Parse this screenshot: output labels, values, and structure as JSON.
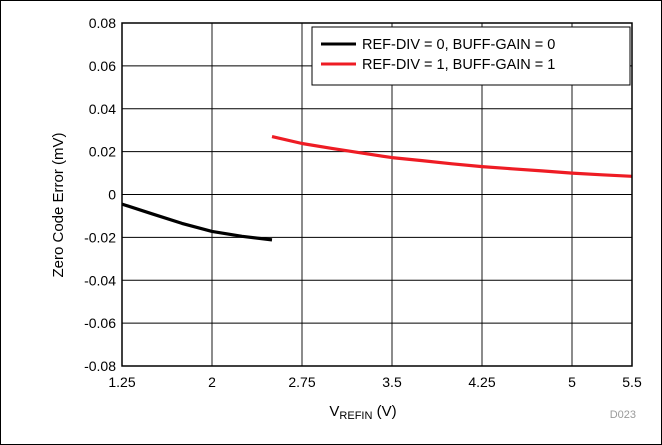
{
  "chart_data": {
    "type": "line",
    "title": "",
    "xlabel": "V",
    "xlabel_sub": "REFIN",
    "xlabel_unit": " (V)",
    "ylabel": "Zero Code Error (mV)",
    "xlim": [
      1.25,
      5.5
    ],
    "ylim": [
      -0.08,
      0.08
    ],
    "x_ticks": [
      1.25,
      2,
      2.75,
      3.5,
      4.25,
      5,
      5.5
    ],
    "x_tick_labels": [
      "1.25",
      "2",
      "2.75",
      "3.5",
      "4.25",
      "5",
      "5.5"
    ],
    "y_ticks": [
      0.08,
      0.06,
      0.04,
      0.02,
      0,
      -0.02,
      -0.04,
      -0.06,
      -0.08
    ],
    "y_tick_labels": [
      "0.08",
      "0.06",
      "0.04",
      "0.02",
      "0",
      "-0.02",
      "-0.04",
      "-0.06",
      "-0.08"
    ],
    "grid": true,
    "legend_position": "top-right",
    "figure_code": "D023",
    "series": [
      {
        "name": "REF-DIV = 0, BUFF-GAIN = 0",
        "color": "#000000",
        "x": [
          1.25,
          1.5,
          1.75,
          2.0,
          2.25,
          2.5
        ],
        "y": [
          -0.0045,
          -0.009,
          -0.0135,
          -0.0172,
          -0.0195,
          -0.0212
        ]
      },
      {
        "name": "REF-DIV = 1, BUFF-GAIN = 1",
        "color": "#ee1c24",
        "x": [
          2.5,
          2.75,
          3.0,
          3.25,
          3.5,
          3.75,
          4.0,
          4.25,
          4.5,
          4.75,
          5.0,
          5.25,
          5.5
        ],
        "y": [
          0.027,
          0.0238,
          0.0215,
          0.0193,
          0.0172,
          0.0158,
          0.0143,
          0.013,
          0.012,
          0.011,
          0.01,
          0.0092,
          0.0085
        ]
      }
    ]
  }
}
